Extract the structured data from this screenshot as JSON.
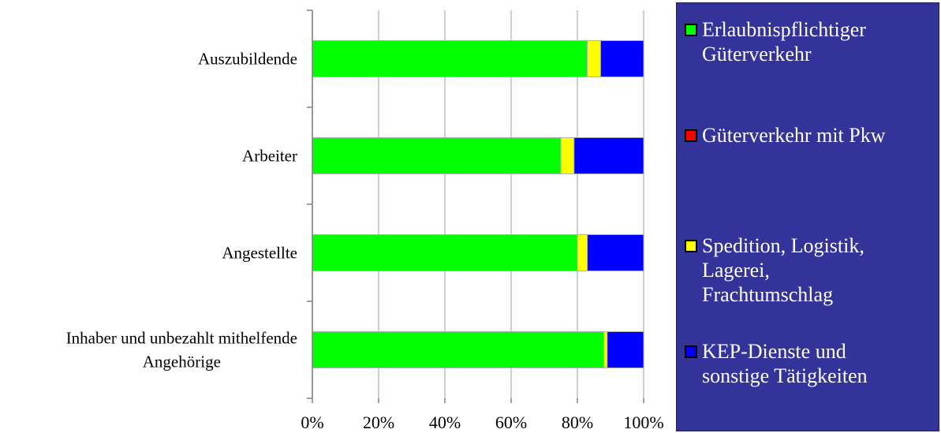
{
  "chart_data": {
    "type": "bar",
    "orientation": "horizontal",
    "stacked": "percent",
    "categories": [
      [
        "Auszubildende"
      ],
      [
        "Arbeiter"
      ],
      [
        "Angestellte"
      ],
      [
        "Inhaber und unbezahlt mithelfende",
        "Angehörige"
      ]
    ],
    "series": [
      {
        "name": "Erlaubnispflichtiger Güterverkehr",
        "color": "#00ff00",
        "values": [
          83,
          75,
          80,
          88
        ]
      },
      {
        "name": "Güterverkehr mit Pkw",
        "color": "#ff0000",
        "values": [
          0,
          0,
          0,
          0
        ]
      },
      {
        "name": "Spedition, Logistik, Lagerei, Frachtumschlag",
        "color": "#ffff00",
        "values": [
          4,
          4,
          3,
          1
        ]
      },
      {
        "name": "KEP-Dienste und sonstige Tätigkeiten",
        "color": "#0000ff",
        "values": [
          13,
          21,
          17,
          11
        ]
      }
    ],
    "xlim": [
      0,
      100
    ],
    "xticks": [
      "0%",
      "20%",
      "40%",
      "60%",
      "80%",
      "100%"
    ],
    "grid": true,
    "legend_position": "right"
  },
  "legend": {
    "items": [
      {
        "lines": [
          "Erlaubnispflichtiger",
          "Güterverkehr"
        ],
        "color": "#00ff00"
      },
      {
        "lines": [
          "Güterverkehr mit Pkw"
        ],
        "color": "#ff0000"
      },
      {
        "lines": [
          "Spedition, Logistik,",
          "Lagerei,",
          "Frachtumschlag"
        ],
        "color": "#ffff00"
      },
      {
        "lines": [
          "KEP-Dienste und",
          "sonstige Tätigkeiten"
        ],
        "color": "#0000ff"
      }
    ]
  }
}
